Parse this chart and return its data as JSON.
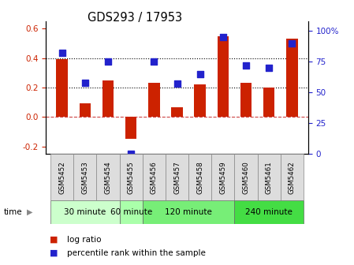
{
  "title": "GDS293 / 17953",
  "samples": [
    "GSM5452",
    "GSM5453",
    "GSM5454",
    "GSM5455",
    "GSM5456",
    "GSM5457",
    "GSM5458",
    "GSM5459",
    "GSM5460",
    "GSM5461",
    "GSM5462"
  ],
  "log_ratio": [
    0.39,
    0.09,
    0.25,
    -0.15,
    0.23,
    0.065,
    0.22,
    0.55,
    0.23,
    0.2,
    0.53
  ],
  "percentile": [
    82,
    58,
    75,
    0,
    75,
    57,
    65,
    95,
    72,
    70,
    90
  ],
  "ylim_left": [
    -0.25,
    0.65
  ],
  "ylim_right": [
    0,
    108
  ],
  "yticks_left": [
    -0.2,
    0.0,
    0.2,
    0.4,
    0.6
  ],
  "yticks_right": [
    0,
    25,
    50,
    75,
    100
  ],
  "bar_color": "#cc2200",
  "dot_color": "#2222cc",
  "dot_size": 30,
  "hline_y": [
    0.2,
    0.4
  ],
  "hline_zero_color": "#cc4444",
  "hline_color": "black",
  "time_groups": [
    {
      "label": "30 minute",
      "start": 0,
      "end": 2,
      "color": "#ccffcc"
    },
    {
      "label": "60 minute",
      "start": 3,
      "end": 3,
      "color": "#aaffaa"
    },
    {
      "label": "120 minute",
      "start": 4,
      "end": 7,
      "color": "#77ee77"
    },
    {
      "label": "240 minute",
      "start": 8,
      "end": 10,
      "color": "#44dd44"
    }
  ],
  "xlabel": "time",
  "left_axis_color": "#cc2200",
  "right_axis_color": "#2222cc",
  "background_plot": "#ffffff",
  "background_labels": "#dddddd"
}
